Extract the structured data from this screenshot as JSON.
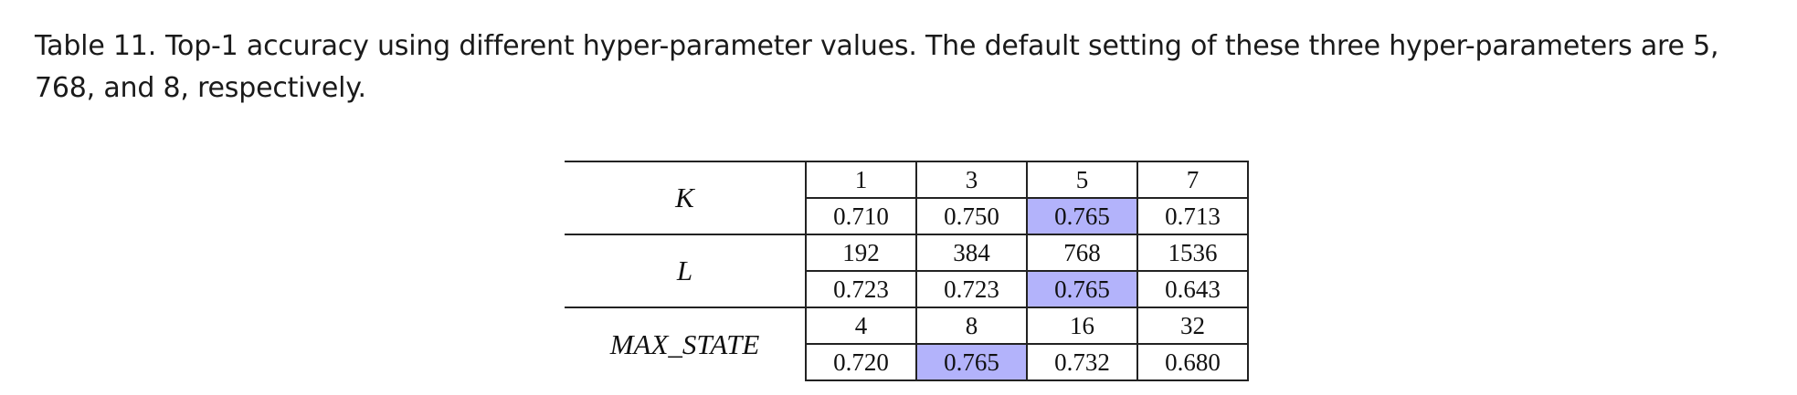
{
  "caption": {
    "label": "Table 11.",
    "text": "Top-1 accuracy using different hyper-parameter values. The default setting of these three hyper-parameters are 5, 768, and 8, respectively."
  },
  "highlight_color": "#b3b3fb",
  "table": {
    "rows": [
      {
        "param": "K",
        "values": [
          "1",
          "3",
          "5",
          "7"
        ],
        "accuracies": [
          "0.710",
          "0.750",
          "0.765",
          "0.713"
        ],
        "default_index": 2
      },
      {
        "param": "L",
        "values": [
          "192",
          "384",
          "768",
          "1536"
        ],
        "accuracies": [
          "0.723",
          "0.723",
          "0.765",
          "0.643"
        ],
        "default_index": 2
      },
      {
        "param": "MAX_STATE",
        "values": [
          "4",
          "8",
          "16",
          "32"
        ],
        "accuracies": [
          "0.720",
          "0.765",
          "0.732",
          "0.680"
        ],
        "default_index": 1
      }
    ]
  }
}
